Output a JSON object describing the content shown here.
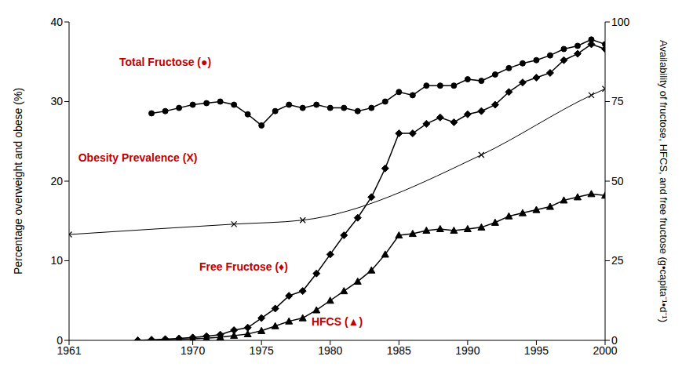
{
  "chart_data": {
    "type": "line",
    "y_label": "Percentage overweight and obese (%)",
    "y2_label": "Availability of fructose, HFCS, and free fructose (g•capita⁻¹•d⁻¹)",
    "xlim": [
      1961,
      2000
    ],
    "xticks": [
      1961,
      1970,
      1975,
      1980,
      1985,
      1990,
      1995,
      2000
    ],
    "ylim": [
      0,
      40
    ],
    "yticks": [
      0,
      10,
      20,
      30,
      40
    ],
    "y2lim": [
      0,
      100
    ],
    "y2ticks": [
      0,
      25,
      50,
      75,
      100
    ],
    "grid": false,
    "annotations": [
      {
        "text": "Total Fructose (●)",
        "x": 1968,
        "y": 35,
        "color": "#c00000"
      },
      {
        "text": "Obesity Prevalence (X)",
        "x": 1966,
        "y": 23,
        "color": "#c00000"
      },
      {
        "text": "Free Fructose (♦)",
        "x": 1973.7,
        "y": 9.3,
        "color": "#c00000"
      },
      {
        "text": "HFCS (▲)",
        "x": 1980.5,
        "y": 2.4,
        "color": "#c00000"
      }
    ],
    "series": [
      {
        "axis": "y2",
        "color": "#000000",
        "marker": "circle",
        "line_style": "solid",
        "x": [
          1967,
          1968,
          1969,
          1970,
          1971,
          1972,
          1973,
          1974,
          1975,
          1976,
          1977,
          1978,
          1979,
          1980,
          1981,
          1982,
          1983,
          1984,
          1985,
          1986,
          1987,
          1988,
          1989,
          1990,
          1991,
          1992,
          1993,
          1994,
          1995,
          1996,
          1997,
          1998,
          1999,
          2000
        ],
        "values": [
          71.3,
          72,
          73,
          74,
          74.5,
          75,
          74,
          71,
          67.5,
          72,
          74,
          73,
          74,
          73,
          73,
          72,
          73,
          75,
          78,
          77,
          80,
          80,
          80,
          82,
          81.5,
          83.5,
          85.5,
          87,
          88,
          89.5,
          91.5,
          92.5,
          94.5,
          93
        ]
      },
      {
        "axis": "y2",
        "color": "#000000",
        "marker": "diamond",
        "line_style": "solid",
        "x": [
          1966,
          1967,
          1968,
          1969,
          1970,
          1971,
          1972,
          1973,
          1974,
          1975,
          1976,
          1977,
          1978,
          1979,
          1980,
          1981,
          1982,
          1983,
          1984,
          1985,
          1986,
          1987,
          1988,
          1989,
          1990,
          1991,
          1992,
          1993,
          1994,
          1995,
          1996,
          1997,
          1998,
          1999,
          2000
        ],
        "values": [
          0,
          0.2,
          0.4,
          0.6,
          0.9,
          1.3,
          1.8,
          3.2,
          4,
          7,
          10,
          14,
          15.5,
          21,
          27,
          33,
          38.5,
          45,
          54,
          65,
          65,
          68,
          70,
          68.5,
          71,
          72,
          74,
          78,
          81,
          82.5,
          84,
          88,
          90,
          93,
          91.5
        ]
      },
      {
        "axis": "y2",
        "color": "#000000",
        "marker": "triangle",
        "line_style": "solid",
        "x": [
          1966,
          1967,
          1968,
          1969,
          1970,
          1971,
          1972,
          1973,
          1974,
          1975,
          1976,
          1977,
          1978,
          1979,
          1980,
          1981,
          1982,
          1983,
          1984,
          1985,
          1986,
          1987,
          1988,
          1989,
          1990,
          1991,
          1992,
          1993,
          1994,
          1995,
          1996,
          1997,
          1998,
          1999,
          2000
        ],
        "values": [
          0,
          0,
          0.2,
          0.3,
          0.5,
          0.7,
          1,
          1.5,
          2,
          3,
          4.5,
          6,
          7,
          9.5,
          12.5,
          15.5,
          18.5,
          22,
          27,
          33,
          33.5,
          34.5,
          35,
          34.5,
          35,
          35.5,
          37,
          39,
          40,
          41,
          42,
          44,
          45,
          46,
          45.5
        ]
      },
      {
        "axis": "y",
        "color": "#000000",
        "marker": "x",
        "line_style": "solid",
        "x": [
          1961,
          1973,
          1978,
          1991,
          1999,
          2000
        ],
        "values": [
          13.3,
          14.6,
          15.1,
          23.3,
          30.8,
          31.6
        ]
      }
    ]
  }
}
